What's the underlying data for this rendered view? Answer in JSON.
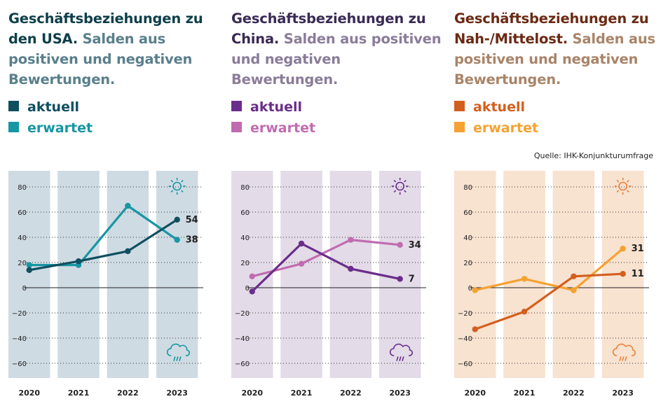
{
  "source": "Quelle: IHK-Konjunkturumfrage",
  "years": [
    "2020",
    "2021",
    "2022",
    "2023"
  ],
  "y_ticks": [
    "80",
    "60",
    "40",
    "20",
    "0",
    "−20",
    "−40",
    "−60"
  ],
  "panels": [
    {
      "title_bold": "Geschäftsbeziehungen zu den USA.",
      "title_rest": " Salden aus positiven und negativen Bewertungen.",
      "legend_current": "aktuell",
      "legend_expected": "erwartet",
      "colors": {
        "title": "#0e3f4a",
        "subtitle": "#5a7f8c",
        "current": "#0f4f5f",
        "expected": "#1796a3",
        "band": "#cfdbe3",
        "icon": "#1796a3"
      },
      "chart_data": {
        "type": "line",
        "categories": [
          "2020",
          "2021",
          "2022",
          "2023"
        ],
        "ylim": [
          -65,
          88
        ],
        "series": [
          {
            "name": "aktuell",
            "values": [
              14,
              21,
              29,
              54
            ],
            "end_label": "54"
          },
          {
            "name": "erwartet",
            "values": [
              18,
              18,
              65,
              38
            ],
            "end_label": "38"
          }
        ]
      }
    },
    {
      "title_bold": "Geschäftsbeziehungen zu China.",
      "title_rest": " Salden aus positiven und negativen Bewertungen.",
      "legend_current": "aktuell",
      "legend_expected": "erwartet",
      "colors": {
        "title": "#3a2a55",
        "subtitle": "#8a7c9a",
        "current": "#6b2d8b",
        "expected": "#c06cb0",
        "band": "#e3dbe8",
        "icon": "#6b2d8b"
      },
      "chart_data": {
        "type": "line",
        "categories": [
          "2020",
          "2021",
          "2022",
          "2023"
        ],
        "ylim": [
          -65,
          88
        ],
        "series": [
          {
            "name": "aktuell",
            "values": [
              -3,
              35,
              15,
              7
            ],
            "end_label": "7"
          },
          {
            "name": "erwartet",
            "values": [
              9,
              19,
              38,
              34
            ],
            "end_label": "34"
          }
        ]
      }
    },
    {
      "title_bold": "Geschäftsbeziehungen zu Nah-/Mittelost.",
      "title_rest": " Salden aus positiven und negativen Bewertungen.",
      "legend_current": "aktuell",
      "legend_expected": "erwartet",
      "colors": {
        "title": "#6b2a14",
        "subtitle": "#a98468",
        "current": "#d35f1e",
        "expected": "#f5a230",
        "band": "#f8e2d0",
        "icon": "#e8823a"
      },
      "chart_data": {
        "type": "line",
        "categories": [
          "2020",
          "2021",
          "2022",
          "2023"
        ],
        "ylim": [
          -65,
          88
        ],
        "series": [
          {
            "name": "aktuell",
            "values": [
              -33,
              -19,
              9,
              11
            ],
            "end_label": "11"
          },
          {
            "name": "erwartet",
            "values": [
              -2,
              7,
              -2,
              31
            ],
            "end_label": "31"
          }
        ]
      }
    }
  ]
}
